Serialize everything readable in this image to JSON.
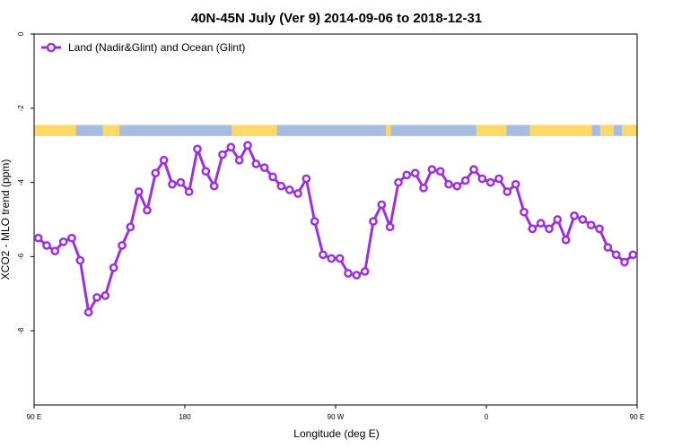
{
  "chart_data": {
    "type": "line",
    "title": "40N-45N July (Ver 9)   2014-09-06 to 2018-12-31",
    "xlabel": "Longitude (deg E)",
    "ylabel": "XCO2 - MLO trend (ppm)",
    "xlim": [
      90,
      450
    ],
    "ylim": [
      -10,
      0
    ],
    "x_ticks": [
      {
        "value": 90,
        "label": "90 E"
      },
      {
        "value": 180,
        "label": "180"
      },
      {
        "value": 270,
        "label": "90 W"
      },
      {
        "value": 360,
        "label": "0"
      },
      {
        "value": 450,
        "label": "90 E"
      },
      {
        "value": 540,
        "label": "180"
      }
    ],
    "y_ticks": [
      {
        "value": 0,
        "label": "0"
      },
      {
        "value": -2,
        "label": "-2"
      },
      {
        "value": -4,
        "label": "-4"
      },
      {
        "value": -6,
        "label": "-6"
      },
      {
        "value": -8,
        "label": "-8"
      }
    ],
    "grid": false,
    "legend_position": "top-left",
    "series": [
      {
        "name": "Land (Nadir&Glint) and Ocean (Glint)",
        "color": "#9b30e0",
        "x": [
          92.5,
          97.5,
          102.5,
          107.5,
          112.5,
          117.5,
          122.5,
          127.5,
          132.5,
          137.5,
          142.5,
          147.5,
          152.5,
          157.5,
          162.5,
          167.5,
          172.5,
          177.5,
          182.5,
          187.5,
          192.5,
          197.5,
          202.5,
          207.5,
          212.5,
          217.5,
          222.5,
          227.5,
          232.5,
          237.5,
          242.5,
          247.5,
          252.5,
          257.5,
          262.5,
          267.5,
          272.5,
          277.5,
          282.5,
          287.5,
          292.5,
          297.5,
          302.5,
          307.5,
          312.5,
          317.5,
          322.5,
          327.5,
          332.5,
          337.5,
          342.5,
          347.5,
          352.5,
          357.5,
          362.5,
          367.5,
          372.5,
          377.5,
          382.5,
          387.5,
          392.5,
          397.5,
          402.5,
          407.5,
          412.5,
          417.5,
          422.5,
          427.5,
          432.5,
          437.5,
          442.5,
          447.5
        ],
        "values": [
          -5.5,
          -5.7,
          -5.85,
          -5.6,
          -5.5,
          -6.1,
          -7.5,
          -7.1,
          -7.05,
          -6.3,
          -5.7,
          -5.2,
          -4.25,
          -4.75,
          -3.75,
          -3.4,
          -4.05,
          -4.0,
          -4.25,
          -3.1,
          -3.7,
          -4.1,
          -3.25,
          -3.05,
          -3.4,
          -3.0,
          -3.5,
          -3.6,
          -3.85,
          -4.1,
          -4.2,
          -4.3,
          -3.9,
          -5.05,
          -5.95,
          -6.05,
          -6.05,
          -6.45,
          -6.5,
          -6.4,
          -5.05,
          -4.6,
          -5.2,
          -4.0,
          -3.8,
          -3.75,
          -4.15,
          -3.65,
          -3.7,
          -4.05,
          -4.1,
          -3.95,
          -3.65,
          -3.9,
          -4.0,
          -3.9,
          -4.25,
          -4.05,
          -4.8,
          -5.25,
          -5.1,
          -5.25,
          -5.0,
          -5.55,
          -4.9,
          -5.0,
          -5.15,
          -5.25,
          -5.75,
          -5.95,
          -6.15,
          -5.95
        ]
      }
    ],
    "overlay_map_band": {
      "y_range": [
        -2.45,
        -2.75
      ],
      "land_color": "#ffd966",
      "ocean_color": "#a6bde0"
    }
  }
}
